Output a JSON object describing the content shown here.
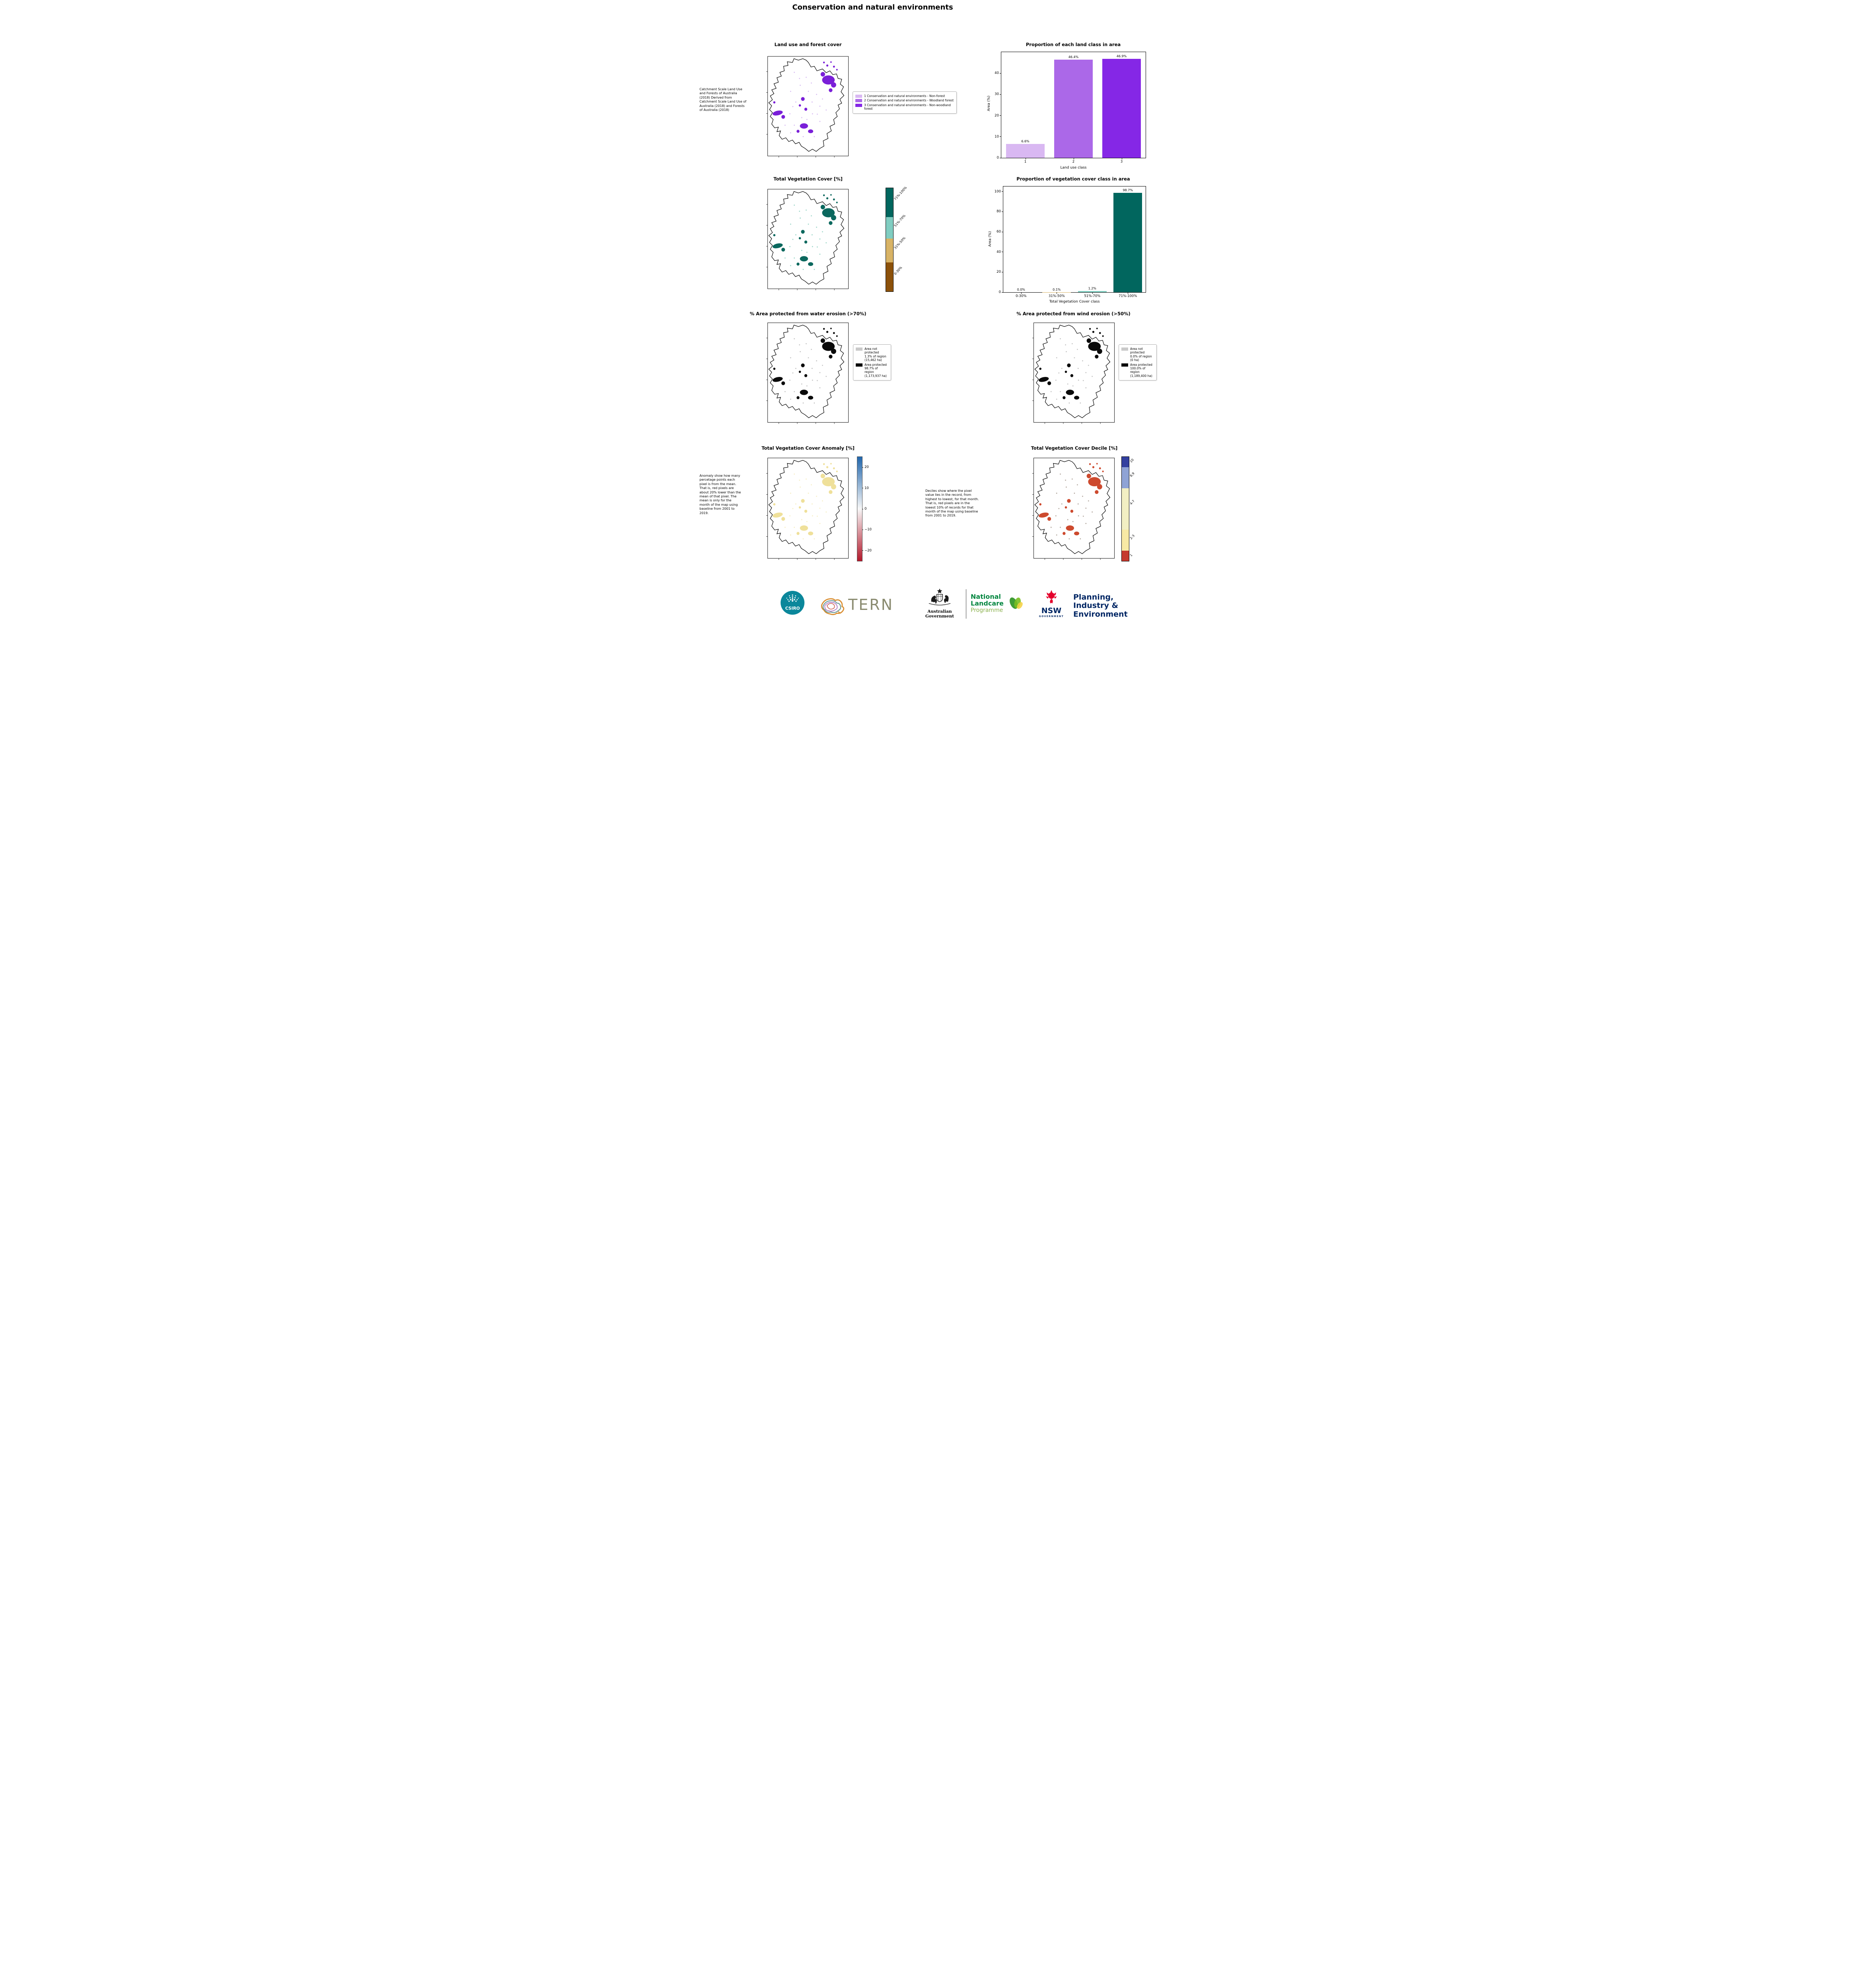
{
  "page": {
    "title": "Conservation and natural environments"
  },
  "chart_data": [
    {
      "type": "map",
      "title": "Land use and forest cover",
      "note": "Catchment Scale Land Use and Forests of Australia (2018) Derived from Catchment Scale Land Use of Australia (2018) and Forests of Australia (2018)",
      "legend": [
        {
          "label": "1 Conservation and natural environments - Non-forest",
          "color": "#d9b8f2"
        },
        {
          "label": "2 Conservation and natural environments - Woodland forest",
          "color": "#ab68e8"
        },
        {
          "label": "3 Conservation and natural environments - Non-woodland forest",
          "color": "#8527e6"
        }
      ]
    },
    {
      "type": "bar",
      "title": "Proportion of each land class in area",
      "categories": [
        "1",
        "2",
        "3"
      ],
      "values": [
        6.6,
        46.4,
        46.9
      ],
      "bar_labels": [
        "6.6%",
        "46.4%",
        "46.9%"
      ],
      "colors": [
        "#d9b8f2",
        "#ab68e8",
        "#8527e6"
      ],
      "xlabel": "Land use class",
      "ylabel": "Area (%)",
      "ylim": [
        0,
        50
      ],
      "yticks": [
        0,
        10,
        20,
        30,
        40
      ],
      "grid": false,
      "legend_position": "none"
    },
    {
      "type": "map",
      "title": "Total Vegetation Cover [%]",
      "colorbar": [
        {
          "label": "71%-100%",
          "color": "#01665e",
          "h": 28
        },
        {
          "label": "51%-70%",
          "color": "#80cdc1",
          "h": 21
        },
        {
          "label": "31%-50%",
          "color": "#d8b365",
          "h": 23
        },
        {
          "label": "0-30%",
          "color": "#8c510a",
          "h": 28
        }
      ]
    },
    {
      "type": "bar",
      "title": "Proportion of vegetation cover class in area",
      "categories": [
        "0-30%",
        "31%-50%",
        "51%-70%",
        "71%-100%"
      ],
      "values": [
        0.0,
        0.1,
        1.2,
        98.7
      ],
      "bar_labels": [
        "0.0%",
        "0.1%",
        "1.2%",
        "98.7%"
      ],
      "colors": [
        "#8c510a",
        "#d8b365",
        "#80cdc1",
        "#01665e"
      ],
      "xlabel": "Total Vegetation Cover class",
      "ylabel": "Area (%)",
      "ylim": [
        0,
        105
      ],
      "yticks": [
        0,
        20,
        40,
        60,
        80,
        100
      ],
      "grid": false,
      "legend_position": "none"
    },
    {
      "type": "map",
      "title": "% Area protected from water erosion (>70%)",
      "legend": [
        {
          "label": "Area not protected 1.3% of region (15,462 ha)",
          "color": "#c9c9c9"
        },
        {
          "label": "Area protected 98.7% of region (1,173,937 ha)",
          "color": "#000000"
        }
      ]
    },
    {
      "type": "map",
      "title": "% Area protected from wind erosion (>50%)",
      "legend": [
        {
          "label": "Area not protected 0.0% of region (0 ha)",
          "color": "#c9c9c9"
        },
        {
          "label": "Area protected 100.0% of region (1,189,400 ha)",
          "color": "#000000"
        }
      ]
    },
    {
      "type": "map",
      "title": "Total Vegetation Cover Anomaly [%]",
      "note": "Anomaly show how many percetage points each pixel is from the mean. That is, red pixels are about 20% lower than the mean of that pixel. The mean is only for the month of the map using baseline from 2001 to 2019.",
      "colorbar": {
        "ticks": [
          "20",
          "10",
          "0",
          "−10",
          "−20"
        ],
        "range": [
          -25,
          25
        ],
        "color_top": "#2166ac",
        "color_mid": "#f7f7f7",
        "color_bottom": "#b2182b"
      }
    },
    {
      "type": "map",
      "title": "Total Vegetation Cover Decile [%]",
      "note": "Deciles show where the pixel value lies in the record, from highest to lowest, for that month. That is, red pixels are in the lowest 10% of records for that month of the map using baseline from 2001 to 2019.",
      "colorbar": [
        {
          "label": "10",
          "color": "#33409f",
          "h": 10
        },
        {
          "label": "8,9",
          "color": "#8fa3d5",
          "h": 20
        },
        {
          "label": "4-7",
          "color": "#f2efc3",
          "h": 40
        },
        {
          "label": "2-3",
          "color": "#f8e9a4",
          "h": 20
        },
        {
          "label": "1",
          "color": "#c53a2e",
          "h": 10
        }
      ]
    }
  ],
  "footer": {
    "csiro": "CSIRO",
    "tern": "TERN",
    "aus_gov": "Australian Government",
    "landcare": [
      "National",
      "Landcare",
      "Programme"
    ],
    "nsw": "NSW",
    "nsw_sub": "GOVERNMENT",
    "planning": [
      "Planning,",
      "Industry &",
      "Environment"
    ]
  }
}
